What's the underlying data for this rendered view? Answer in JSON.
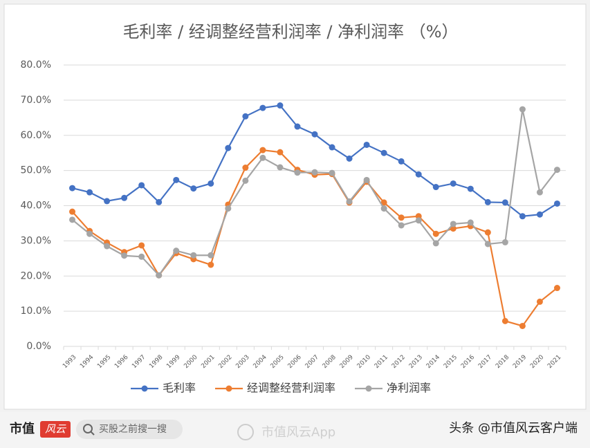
{
  "chart_data": {
    "type": "line",
    "title": "毛利率 / 经调整经营利润率 / 净利润率  （%）",
    "categories": [
      "1993",
      "1994",
      "1995",
      "1996",
      "1997",
      "1998",
      "1999",
      "2000",
      "2001",
      "2002",
      "2003",
      "2004",
      "2005",
      "2006",
      "2007",
      "2008",
      "2009",
      "2010",
      "2011",
      "2012",
      "2013",
      "2014",
      "2015",
      "2016",
      "2017",
      "2018",
      "2019",
      "2020",
      "2021"
    ],
    "series": [
      {
        "name": "毛利率",
        "color": "#4472c4",
        "values": [
          45.0,
          43.8,
          41.3,
          42.2,
          45.8,
          41.0,
          47.3,
          44.9,
          46.3,
          56.4,
          65.4,
          67.8,
          68.5,
          62.5,
          60.3,
          56.6,
          53.4,
          57.3,
          55.0,
          52.6,
          48.9,
          45.3,
          46.3,
          44.8,
          41.0,
          40.9,
          37.0,
          37.5,
          40.6
        ]
      },
      {
        "name": "经调整经营利润率",
        "color": "#ed7d31",
        "values": [
          38.3,
          32.8,
          29.5,
          26.8,
          28.7,
          20.2,
          26.5,
          24.8,
          23.2,
          40.3,
          50.8,
          55.8,
          55.2,
          50.2,
          48.8,
          49.0,
          40.9,
          46.8,
          40.9,
          36.6,
          37.0,
          32.0,
          33.5,
          34.2,
          32.4,
          7.2,
          5.8,
          12.7,
          16.6
        ]
      },
      {
        "name": "净利润率",
        "color": "#a5a5a5",
        "values": [
          36.0,
          32.0,
          28.5,
          25.8,
          25.5,
          20.2,
          27.2,
          25.9,
          25.9,
          39.2,
          47.1,
          53.6,
          50.9,
          49.4,
          49.5,
          49.3,
          41.2,
          47.3,
          39.2,
          34.4,
          35.8,
          29.3,
          34.8,
          35.2,
          29.1,
          29.6,
          67.4,
          43.8,
          50.2
        ]
      }
    ],
    "ylim": [
      0,
      80
    ],
    "yticks": [
      {
        "value": 0,
        "label": "0.0%"
      },
      {
        "value": 10,
        "label": "10.0%"
      },
      {
        "value": 20,
        "label": "20.0%"
      },
      {
        "value": 30,
        "label": "30.0%"
      },
      {
        "value": 40,
        "label": "40.0%"
      },
      {
        "value": 50,
        "label": "50.0%"
      },
      {
        "value": 60,
        "label": "60.0%"
      },
      {
        "value": 70,
        "label": "70.0%"
      },
      {
        "value": 80,
        "label": "80.0%"
      }
    ],
    "grid": true,
    "legend": "bottom"
  },
  "footer": {
    "logo_a": "市值",
    "logo_b": "风云",
    "search": "买股之前搜一搜",
    "watermark": "市值风云App",
    "source": "头条 @市值风云客户端"
  }
}
